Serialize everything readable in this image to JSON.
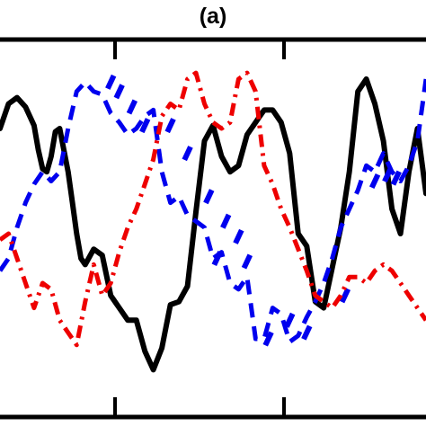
{
  "panel_label": "(a)",
  "chart_data": {
    "type": "line",
    "title": "(a)",
    "xlabel": "",
    "ylabel": "",
    "xlim": [
      0,
      100
    ],
    "ylim": [
      0,
      100
    ],
    "grid": false,
    "legend": "none",
    "series": [
      {
        "color": "#000000",
        "style": "solid",
        "x": [
          0,
          2,
          4,
          6,
          8,
          9,
          10,
          11,
          12,
          13,
          14,
          15,
          16,
          17,
          18,
          19,
          20,
          22,
          24,
          26,
          28,
          30,
          32,
          34,
          36,
          38,
          40,
          42,
          44,
          46,
          48,
          50,
          52,
          54,
          56,
          58,
          60,
          62,
          64,
          66,
          68,
          70,
          72,
          74,
          76,
          78,
          80,
          82,
          84,
          86,
          88,
          90,
          92,
          94,
          96,
          98,
          100
        ],
        "y": [
          84,
          92,
          94,
          91,
          85,
          77,
          71,
          70,
          75,
          83,
          84,
          77,
          70,
          60,
          50,
          42,
          40,
          45,
          43,
          30,
          26,
          22,
          22,
          12,
          6,
          13,
          27,
          28,
          33,
          57,
          80,
          85,
          75,
          70,
          72,
          82,
          86,
          90,
          90,
          86,
          76,
          50,
          46,
          28,
          26,
          39,
          52,
          70,
          96,
          100,
          92,
          80,
          58,
          50,
          70,
          84,
          63
        ]
      },
      {
        "color": "#0000ee",
        "style": "dash",
        "x": [
          0,
          2,
          4,
          6,
          8,
          10,
          12,
          14,
          16,
          18,
          20,
          22,
          24,
          26,
          28,
          30,
          32,
          34,
          36,
          38,
          40,
          42,
          44,
          46,
          48,
          50,
          52,
          54,
          56,
          58,
          60,
          62,
          64,
          66,
          68,
          70,
          72,
          74,
          76,
          78,
          80,
          82,
          84,
          86,
          88,
          90,
          92,
          94,
          96,
          98,
          100
        ],
        "y": [
          38,
          42,
          52,
          60,
          66,
          70,
          67,
          70,
          84,
          96,
          99,
          96,
          95,
          89,
          86,
          82,
          84,
          88,
          90,
          70,
          60,
          62,
          56,
          54,
          52,
          42,
          44,
          34,
          32,
          36,
          16,
          16,
          26,
          24,
          15,
          17,
          23,
          28,
          34,
          42,
          52,
          58,
          64,
          72,
          70,
          76,
          70,
          67,
          72,
          80,
          100
        ],
        "markers": [
          {
            "x": 26,
            "y": 99
          },
          {
            "x": 28,
            "y": 96
          },
          {
            "x": 31,
            "y": 91
          },
          {
            "x": 34,
            "y": 85
          },
          {
            "x": 40,
            "y": 85
          },
          {
            "x": 44,
            "y": 76
          },
          {
            "x": 49,
            "y": 62
          },
          {
            "x": 53,
            "y": 54
          },
          {
            "x": 56,
            "y": 49
          },
          {
            "x": 51,
            "y": 42
          },
          {
            "x": 58,
            "y": 41
          },
          {
            "x": 63,
            "y": 16
          },
          {
            "x": 68,
            "y": 22
          },
          {
            "x": 72,
            "y": 18
          },
          {
            "x": 81,
            "y": 30
          },
          {
            "x": 88,
            "y": 67
          },
          {
            "x": 91,
            "y": 69
          },
          {
            "x": 93,
            "y": 68
          }
        ]
      },
      {
        "color": "#ee0000",
        "style": "dashdot",
        "x": [
          0,
          2,
          4,
          6,
          8,
          10,
          12,
          14,
          16,
          18,
          20,
          22,
          24,
          26,
          28,
          30,
          32,
          34,
          36,
          38,
          40,
          42,
          44,
          46,
          48,
          50,
          52,
          54,
          56,
          58,
          60,
          62,
          64,
          66,
          68,
          70,
          72,
          74,
          76,
          78,
          80,
          82,
          84,
          86,
          88,
          90,
          92,
          94,
          96,
          98,
          100
        ],
        "y": [
          48,
          50,
          42,
          34,
          26,
          34,
          32,
          22,
          18,
          14,
          28,
          40,
          30,
          34,
          44,
          52,
          58,
          66,
          74,
          88,
          92,
          90,
          100,
          102,
          92,
          86,
          84,
          86,
          100,
          102,
          96,
          72,
          66,
          58,
          52,
          45,
          38,
          30,
          28,
          26,
          30,
          36,
          36,
          34,
          38,
          40,
          38,
          34,
          30,
          26,
          22
        ]
      }
    ]
  }
}
